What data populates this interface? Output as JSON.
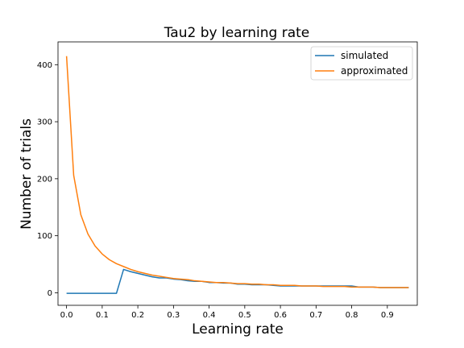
{
  "chart_data": {
    "type": "line",
    "title": "Tau2 by learning rate",
    "xlabel": "Learning rate",
    "ylabel": "Number of trials",
    "xlim": [
      -0.024,
      0.984
    ],
    "ylim": [
      -22,
      440
    ],
    "xticks": [
      0.0,
      0.1,
      0.2,
      0.3,
      0.4,
      0.5,
      0.6,
      0.7,
      0.8,
      0.9
    ],
    "xtick_labels": [
      "0.0",
      "0.1",
      "0.2",
      "0.3",
      "0.4",
      "0.5",
      "0.6",
      "0.7",
      "0.8",
      "0.9"
    ],
    "yticks": [
      0,
      100,
      200,
      300,
      400
    ],
    "ytick_labels": [
      "0",
      "100",
      "200",
      "300",
      "400"
    ],
    "grid": false,
    "legend_position": "top-right",
    "series": [
      {
        "name": "simulated",
        "color": "#1f77b4",
        "x": [
          0.0,
          0.02,
          0.04,
          0.06,
          0.08,
          0.1,
          0.12,
          0.14,
          0.16,
          0.18,
          0.2,
          0.22,
          0.24,
          0.26,
          0.28,
          0.3,
          0.32,
          0.34,
          0.36,
          0.38,
          0.4,
          0.42,
          0.44,
          0.46,
          0.48,
          0.5,
          0.52,
          0.54,
          0.56,
          0.58,
          0.6,
          0.62,
          0.64,
          0.66,
          0.68,
          0.7,
          0.72,
          0.74,
          0.76,
          0.78,
          0.8,
          0.82,
          0.84,
          0.86,
          0.88,
          0.9,
          0.92,
          0.94,
          0.96
        ],
        "values": [
          -1,
          -1,
          -1,
          -1,
          -1,
          -1,
          -1,
          -1,
          41,
          37,
          34,
          31,
          28,
          26,
          26,
          24,
          23,
          21,
          20,
          20,
          18,
          18,
          17,
          17,
          15,
          15,
          14,
          14,
          14,
          13,
          12,
          12,
          12,
          12,
          12,
          12,
          12,
          12,
          12,
          12,
          12,
          10,
          10,
          10,
          9,
          9,
          9,
          9,
          9
        ]
      },
      {
        "name": "approximated",
        "color": "#ff7f0e",
        "x": [
          0.0,
          0.02,
          0.04,
          0.06,
          0.08,
          0.1,
          0.12,
          0.14,
          0.16,
          0.18,
          0.2,
          0.22,
          0.24,
          0.26,
          0.28,
          0.3,
          0.32,
          0.34,
          0.36,
          0.38,
          0.4,
          0.42,
          0.44,
          0.46,
          0.48,
          0.5,
          0.52,
          0.54,
          0.56,
          0.58,
          0.6,
          0.62,
          0.64,
          0.66,
          0.68,
          0.7,
          0.72,
          0.74,
          0.76,
          0.78,
          0.8,
          0.82,
          0.84,
          0.86,
          0.88,
          0.9,
          0.92,
          0.94,
          0.96
        ],
        "values": [
          415,
          206,
          137,
          103,
          82,
          68,
          58,
          51,
          46,
          41,
          37,
          34,
          31,
          29,
          27,
          25,
          24,
          23,
          21,
          20,
          19,
          18,
          18,
          17,
          16,
          16,
          15,
          15,
          14,
          14,
          13,
          13,
          13,
          12,
          12,
          12,
          11,
          11,
          11,
          11,
          10,
          10,
          10,
          10,
          9,
          9,
          9,
          9,
          9
        ]
      }
    ]
  }
}
